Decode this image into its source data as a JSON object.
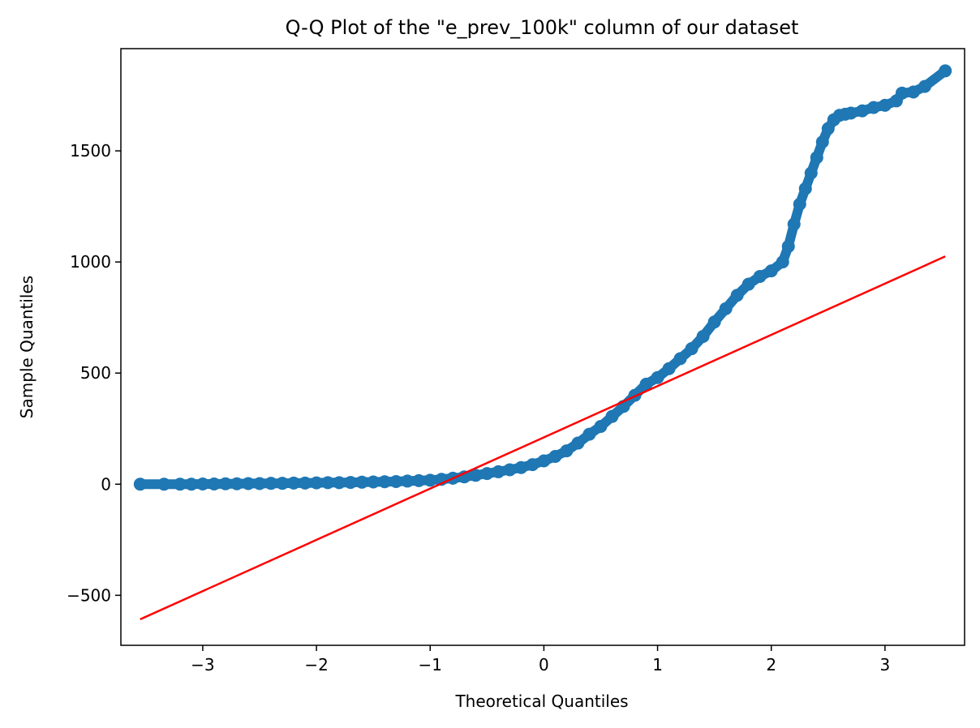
{
  "chart_data": {
    "type": "scatter",
    "title": "Q-Q Plot of the \"e_prev_100k\" column of our dataset",
    "xlabel": "Theoretical Quantiles",
    "ylabel": "Sample Quantiles",
    "xlim": [
      -3.72,
      3.7
    ],
    "ylim": [
      -725,
      1960
    ],
    "xticks": [
      -3,
      -2,
      -1,
      0,
      1,
      2,
      3
    ],
    "xtick_labels": [
      "−3",
      "−2",
      "−1",
      "0",
      "1",
      "2",
      "3"
    ],
    "yticks": [
      -500,
      0,
      500,
      1000,
      1500
    ],
    "ytick_labels": [
      "−500",
      "0",
      "500",
      "1000",
      "1500"
    ],
    "grid": false,
    "legend": "none",
    "marker_color": "#1f77b4",
    "line_color": "#ff0000",
    "series": [
      {
        "kind": "points",
        "x": [
          -3.55,
          -3.34,
          -3.2,
          -3.1,
          -3.0,
          -2.9,
          -2.8,
          -2.7,
          -2.6,
          -2.5,
          -2.4,
          -2.3,
          -2.2,
          -2.1,
          -2.0,
          -1.9,
          -1.8,
          -1.7,
          -1.6,
          -1.5,
          -1.4,
          -1.3,
          -1.2,
          -1.1,
          -1.0,
          -0.9,
          -0.8,
          -0.7,
          -0.6,
          -0.5,
          -0.4,
          -0.3,
          -0.2,
          -0.1,
          0.0,
          0.1,
          0.2,
          0.3,
          0.4,
          0.5,
          0.6,
          0.7,
          0.8,
          0.9,
          1.0,
          1.1,
          1.2,
          1.3,
          1.4,
          1.5,
          1.6,
          1.7,
          1.8,
          1.9,
          2.0,
          2.1,
          2.15,
          2.2,
          2.25,
          2.3,
          2.35,
          2.4,
          2.45,
          2.5,
          2.55,
          2.6,
          2.65,
          2.7,
          2.8,
          2.9,
          3.0,
          3.1,
          3.15,
          3.25,
          3.35,
          3.53
        ],
        "y": [
          0,
          0,
          0,
          0,
          1,
          1,
          2,
          2,
          3,
          3,
          4,
          4,
          5,
          5,
          6,
          7,
          7,
          8,
          9,
          10,
          11,
          12,
          14,
          16,
          18,
          22,
          27,
          33,
          40,
          48,
          56,
          65,
          75,
          88,
          105,
          125,
          150,
          185,
          225,
          260,
          305,
          350,
          400,
          450,
          480,
          520,
          565,
          610,
          665,
          730,
          790,
          850,
          900,
          935,
          960,
          1000,
          1070,
          1170,
          1260,
          1330,
          1400,
          1470,
          1540,
          1600,
          1640,
          1660,
          1665,
          1670,
          1680,
          1695,
          1705,
          1725,
          1760,
          1765,
          1790,
          1860
        ]
      },
      {
        "kind": "line",
        "x": [
          -3.55,
          3.53
        ],
        "y": [
          -608,
          1025
        ]
      }
    ]
  }
}
